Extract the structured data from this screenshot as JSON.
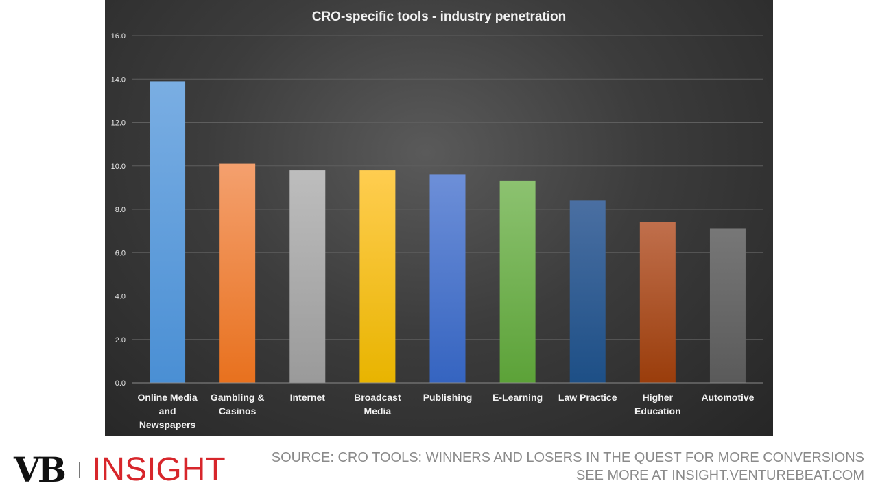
{
  "chart_data": {
    "type": "bar",
    "title": "CRO-specific tools - industry penetration",
    "categories": [
      [
        "Online Media",
        "and",
        "Newspapers"
      ],
      [
        "Gambling &",
        "Casinos"
      ],
      [
        "Internet"
      ],
      [
        "Broadcast",
        "Media"
      ],
      [
        "Publishing"
      ],
      [
        "E-Learning"
      ],
      [
        "Law Practice"
      ],
      [
        "Higher",
        "Education"
      ],
      [
        "Automotive"
      ]
    ],
    "values": [
      13.9,
      10.1,
      9.8,
      9.8,
      9.6,
      9.3,
      8.4,
      7.4,
      7.1
    ],
    "bar_colors": [
      [
        "#7aaee3",
        "#4a8fd4"
      ],
      [
        "#f4a06e",
        "#e8711e"
      ],
      [
        "#bdbdbd",
        "#9a9a9a"
      ],
      [
        "#ffcd50",
        "#e8b400"
      ],
      [
        "#6d8fd8",
        "#3564c0"
      ],
      [
        "#8cc270",
        "#5ca238"
      ],
      [
        "#4a6fa2",
        "#1d4f86"
      ],
      [
        "#c06f4c",
        "#9a3d0b"
      ],
      [
        "#777777",
        "#5a5a5a"
      ]
    ],
    "ylim": [
      0,
      16
    ],
    "yticks": [
      "0.0",
      "2.0",
      "4.0",
      "6.0",
      "8.0",
      "10.0",
      "12.0",
      "14.0",
      "16.0"
    ],
    "grid": true,
    "legend": "none"
  },
  "footer": {
    "logo_vb": "VB",
    "logo_insight": "INSIGHT",
    "source_line": "SOURCE: CRO TOOLS: WINNERS AND LOSERS IN THE QUEST FOR MORE CONVERSIONS",
    "more_line": "SEE MORE AT INSIGHT.VENTUREBEAT.COM"
  }
}
